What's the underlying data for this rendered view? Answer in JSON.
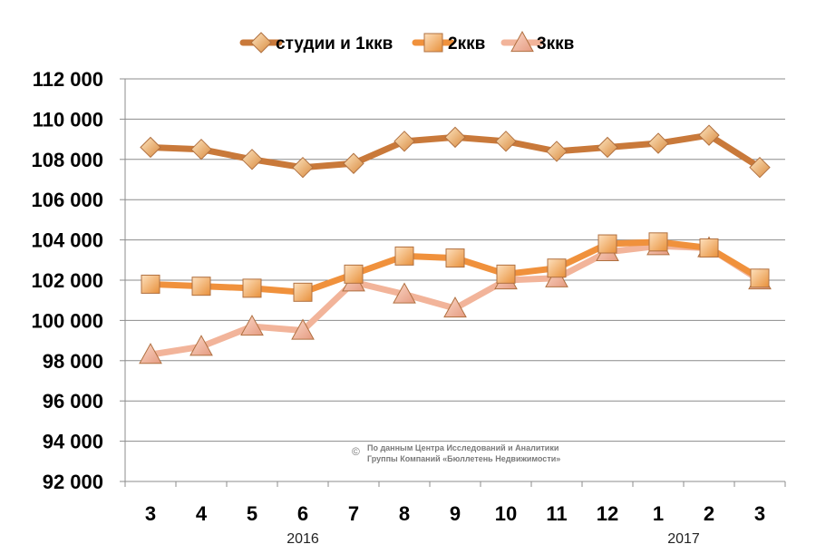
{
  "chart_data": {
    "type": "line",
    "categories": [
      "3",
      "4",
      "5",
      "6",
      "7",
      "8",
      "9",
      "10",
      "11",
      "12",
      "1",
      "2",
      "3"
    ],
    "year_labels": [
      {
        "label": "2016",
        "category_index": 3
      },
      {
        "label": "2017",
        "category_index": 10.5
      }
    ],
    "ylim": [
      92000,
      112000
    ],
    "yticks": [
      92000,
      94000,
      96000,
      98000,
      100000,
      102000,
      104000,
      106000,
      108000,
      110000,
      112000
    ],
    "ytick_labels": [
      "92 000",
      "94 000",
      "96 000",
      "98 000",
      "100 000",
      "102 000",
      "104 000",
      "106 000",
      "108 000",
      "110 000",
      "112 000"
    ],
    "grid": true,
    "legend_position": "top",
    "series": [
      {
        "name": "студии и 1ккв",
        "marker": "diamond",
        "color": "#c9793a",
        "marker_color": "#f3c98c",
        "values": [
          108600,
          108500,
          108000,
          107600,
          107800,
          108900,
          109100,
          108900,
          108400,
          108600,
          108800,
          109200,
          107600
        ]
      },
      {
        "name": "2ккв",
        "marker": "square",
        "color": "#f0913c",
        "marker_color": "#f6c48c",
        "values": [
          101800,
          101700,
          101600,
          101400,
          102300,
          103200,
          103100,
          102300,
          102600,
          103800,
          103900,
          103600,
          102100
        ]
      },
      {
        "name": "3ккв",
        "marker": "triangle",
        "color": "#f2b49a",
        "marker_color": "#f0b8a2",
        "values": [
          98300,
          98700,
          99700,
          99500,
          101900,
          101300,
          100600,
          102000,
          102100,
          103400,
          103700,
          103600,
          102000
        ]
      }
    ]
  },
  "copyright": {
    "symbol": "©",
    "line1": "По данным Центра Исследований и Аналитики",
    "line2": "Группы Компаний «Бюллетень Недвижимости»"
  }
}
